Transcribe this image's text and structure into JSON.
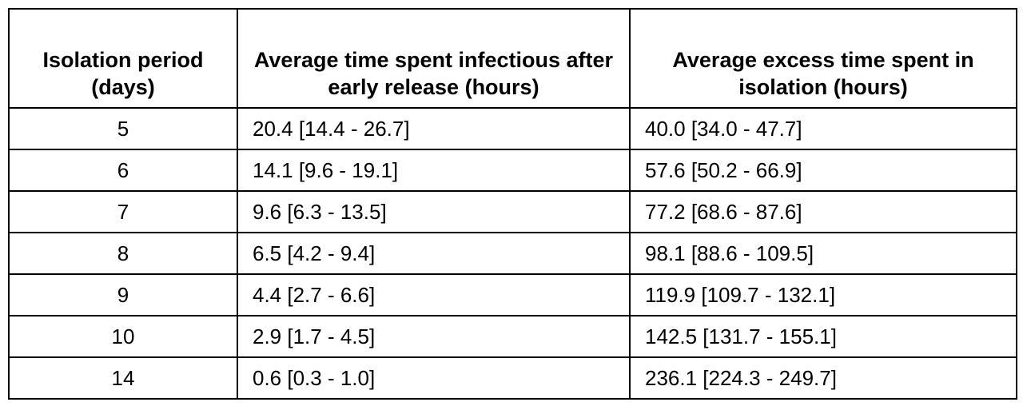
{
  "table": {
    "headers": [
      "Isolation period (days)",
      "Average time spent infectious after early release (hours)",
      "Average excess time spent in isolation (hours)"
    ],
    "rows": [
      {
        "period": "5",
        "infectious": "20.4 [14.4 - 26.7]",
        "excess": "40.0 [34.0 - 47.7]"
      },
      {
        "period": "6",
        "infectious": "14.1 [9.6 - 19.1]",
        "excess": "57.6 [50.2 - 66.9]"
      },
      {
        "period": "7",
        "infectious": "9.6 [6.3 - 13.5]",
        "excess": "77.2 [68.6 - 87.6]"
      },
      {
        "period": "8",
        "infectious": "6.5 [4.2 - 9.4]",
        "excess": "98.1 [88.6 - 109.5]"
      },
      {
        "period": "9",
        "infectious": "4.4 [2.7 - 6.6]",
        "excess": "119.9 [109.7 - 132.1]"
      },
      {
        "period": "10",
        "infectious": "2.9 [1.7 - 4.5]",
        "excess": "142.5 [131.7 - 155.1]"
      },
      {
        "period": "14",
        "infectious": "0.6 [0.3 - 1.0]",
        "excess": "236.1 [224.3 - 249.7]"
      }
    ]
  }
}
